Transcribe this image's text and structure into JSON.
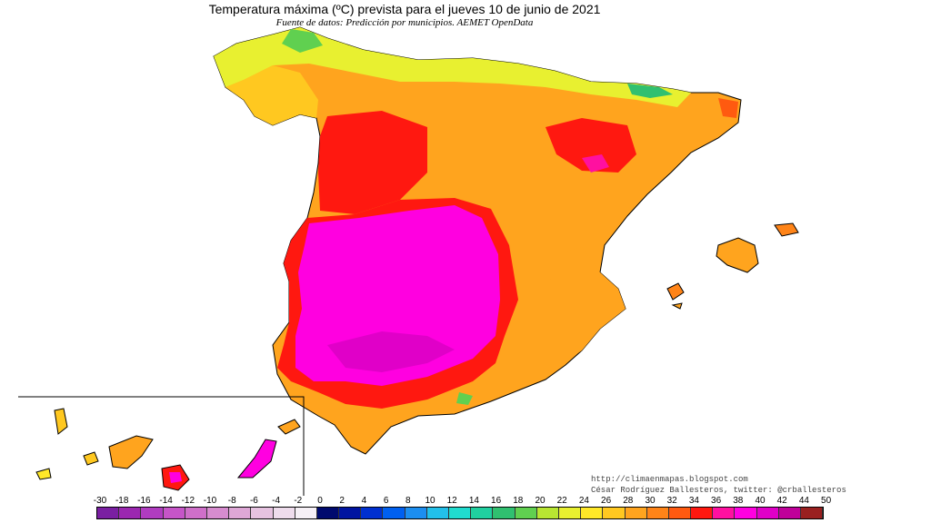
{
  "map": {
    "title": "Temperatura máxima (ºC) prevista para el jueves 10 de junio de 2021",
    "source": "Fuente de datos: Predicción por municipios. AEMET OpenData",
    "credits": [
      "http://climaenmapas.blogspot.com",
      "César Rodríguez Ballesteros, twitter: @crballesteros"
    ],
    "legend": {
      "unit": "ºC",
      "ticks": [
        "-30",
        "-18",
        "-16",
        "-14",
        "-12",
        "-10",
        "-8",
        "-6",
        "-4",
        "-2",
        "0",
        "2",
        "4",
        "6",
        "8",
        "10",
        "12",
        "14",
        "16",
        "18",
        "20",
        "22",
        "24",
        "26",
        "28",
        "30",
        "32",
        "34",
        "36",
        "38",
        "40",
        "42",
        "44",
        "50"
      ],
      "colors": [
        "#7a1fa2",
        "#9b27b0",
        "#b03cc0",
        "#c655c8",
        "#cf6fc9",
        "#d78ccf",
        "#dea7d6",
        "#e6c2e0",
        "#eedcec",
        "#f6f0f6",
        "#000a6e",
        "#0014a0",
        "#0030d0",
        "#0060f0",
        "#1c8ef0",
        "#22c0ea",
        "#20dccf",
        "#20d0a0",
        "#30c070",
        "#60d050",
        "#b8e632",
        "#e8f030",
        "#ffe828",
        "#ffc820",
        "#ffa41e",
        "#ff8418",
        "#ff5a10",
        "#ff1810",
        "#ff10a0",
        "#ff00e0",
        "#e000c8",
        "#c0009a",
        "#9a2020"
      ]
    }
  }
}
